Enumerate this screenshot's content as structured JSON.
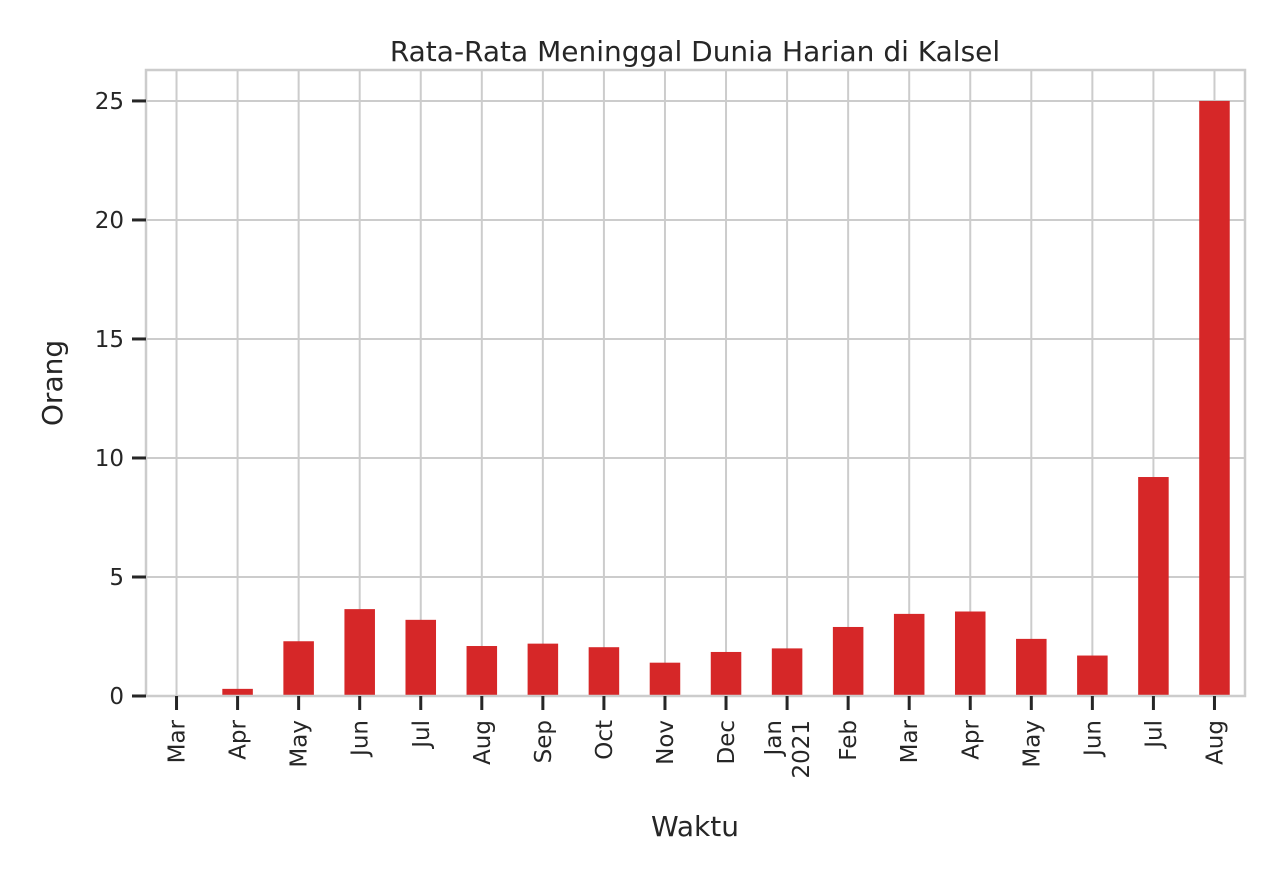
{
  "chart_data": {
    "type": "bar",
    "title": "Rata-Rata Meninggal Dunia Harian di Kalsel",
    "xlabel": "Waktu",
    "ylabel": "Orang",
    "categories": [
      [
        "Mar"
      ],
      [
        "Apr"
      ],
      [
        "May"
      ],
      [
        "Jun"
      ],
      [
        "Jul"
      ],
      [
        "Aug"
      ],
      [
        "Sep"
      ],
      [
        "Oct"
      ],
      [
        "Nov"
      ],
      [
        "Dec"
      ],
      [
        "Jan",
        "2021"
      ],
      [
        "Feb"
      ],
      [
        "Mar"
      ],
      [
        "Apr"
      ],
      [
        "May"
      ],
      [
        "Jun"
      ],
      [
        "Jul"
      ],
      [
        "Aug"
      ]
    ],
    "values": [
      0,
      0.3,
      2.3,
      3.65,
      3.2,
      2.1,
      2.2,
      2.05,
      1.4,
      1.85,
      2.0,
      2.9,
      3.45,
      3.55,
      2.4,
      1.7,
      9.2,
      25.0
    ],
    "ylim": [
      0,
      26.3
    ],
    "yticks": [
      0,
      5,
      10,
      15,
      20,
      25
    ],
    "grid": true,
    "bar_color": "#d62728"
  }
}
